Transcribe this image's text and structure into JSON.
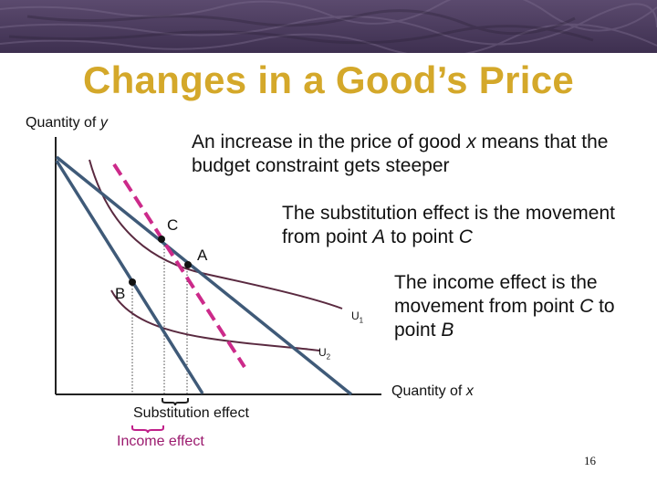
{
  "title": "Changes in a Good’s Price",
  "axes": {
    "y_label_prefix": "Quantity of ",
    "y_label_var": "y",
    "x_label_prefix": "Quantity of ",
    "x_label_var": "x"
  },
  "notes": {
    "note1_a": "An increase in the price of good ",
    "note1_var": "x",
    "note1_b": " means that the budget constraint gets steeper",
    "note2_a": "The substitution effect is the movement from point ",
    "note2_from": "A",
    "note2_mid": " to point ",
    "note2_to": "C",
    "note3_a": "The income effect is the movement from point ",
    "note3_from": "C",
    "note3_mid": " to point ",
    "note3_to": "B"
  },
  "points": {
    "a": "A",
    "b": "B",
    "c": "C"
  },
  "curves": {
    "u1": "U",
    "u1_sub": "1",
    "u2": "U",
    "u2_sub": "2"
  },
  "effects": {
    "substitution": "Substitution effect",
    "income": "Income effect"
  },
  "page_number": "16",
  "colors": {
    "title": "#d4a82a",
    "budget_line": "#3f5a78",
    "dashed_line": "#cc2a8a",
    "indifference": "#5a2a40",
    "banner": "#4a3a5c",
    "income_brace": "#c0208a"
  }
}
